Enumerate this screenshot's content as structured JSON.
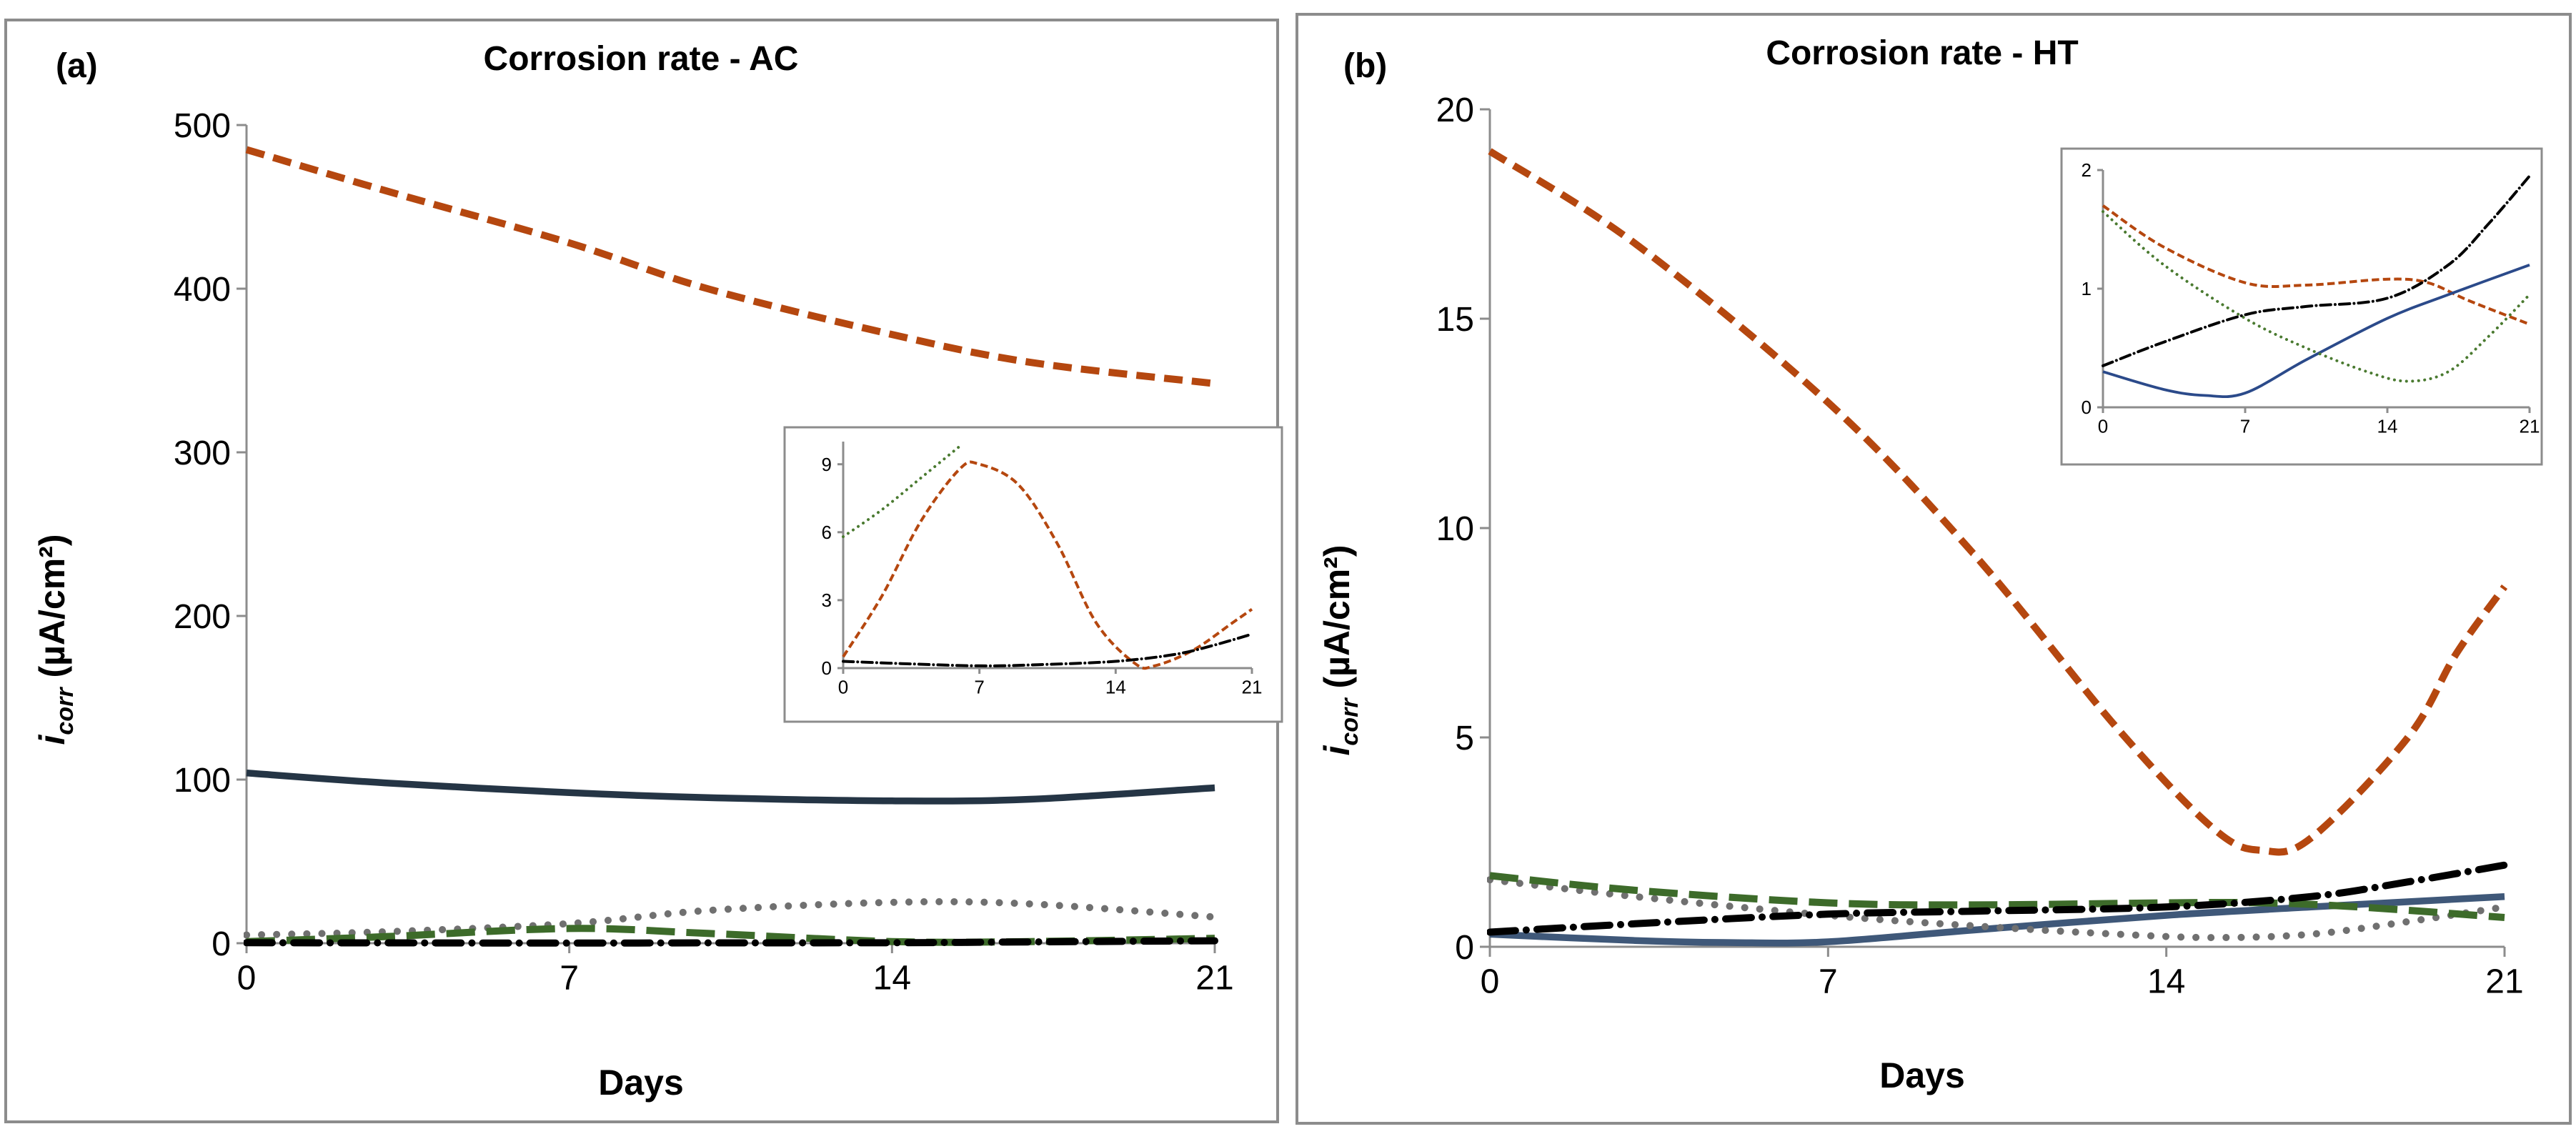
{
  "chart_data": [
    {
      "type": "line",
      "panel_label": "(a)",
      "title": "Corrosion rate - AC",
      "xlabel": "Days",
      "ylabel": {
        "main": "i",
        "sub": "corr",
        "units": " (µA/cm²)"
      },
      "xticks": [
        0,
        7,
        14,
        21
      ],
      "yticks": [
        0,
        100,
        200,
        300,
        400,
        500
      ],
      "xlim": [
        0,
        21
      ],
      "ylim": [
        0,
        500
      ],
      "grid": false,
      "series": [
        {
          "name": "orange-dashed",
          "color": "#b5470f",
          "style": "dashed",
          "x": [
            0,
            3,
            7,
            10,
            14,
            17,
            21
          ],
          "y": [
            485,
            460,
            428,
            400,
            372,
            355,
            342
          ]
        },
        {
          "name": "navy-solid",
          "color": "#253545",
          "style": "solid",
          "x": [
            0,
            3,
            7,
            10,
            14,
            17,
            21
          ],
          "y": [
            104,
            98,
            92,
            89,
            87,
            88,
            95
          ]
        },
        {
          "name": "gray-dotted",
          "color": "#707070",
          "style": "dotted",
          "x": [
            0,
            3,
            7,
            10,
            14,
            17,
            21
          ],
          "y": [
            5,
            7,
            12,
            20,
            25,
            24,
            16
          ]
        },
        {
          "name": "green-dashed",
          "color": "#3d6b2a",
          "style": "longdash",
          "x": [
            0,
            3,
            7,
            10,
            14,
            17,
            21
          ],
          "y": [
            1,
            4,
            9,
            6,
            1,
            1,
            3
          ]
        },
        {
          "name": "black-dashdot",
          "color": "#000000",
          "style": "dashdot",
          "x": [
            0,
            3,
            7,
            10,
            14,
            17,
            21
          ],
          "y": [
            0.3,
            0.2,
            0.1,
            0.2,
            0.3,
            0.8,
            1.5
          ]
        }
      ],
      "inset": {
        "xticks": [
          0,
          7,
          14,
          21
        ],
        "yticks": [
          0,
          3,
          6,
          9
        ],
        "xlim": [
          0,
          21
        ],
        "ylim": [
          0,
          10
        ],
        "series": [
          {
            "name": "orange-dashed",
            "color": "#b5470f",
            "style": "dashed",
            "x": [
              0,
              2,
              4,
              6,
              7,
              9,
              11,
              13,
              15,
              16,
              18,
              20,
              21
            ],
            "y": [
              0.5,
              3.2,
              6.5,
              8.8,
              9.0,
              8.1,
              5.5,
              2.0,
              0.2,
              0.1,
              0.8,
              2.0,
              2.6
            ]
          },
          {
            "name": "green-dotted",
            "color": "#4a7a30",
            "style": "dotted",
            "x": [
              0,
              2,
              4,
              6
            ],
            "y": [
              5.8,
              7.0,
              8.4,
              9.8
            ]
          },
          {
            "name": "black-dashdot",
            "color": "#000000",
            "style": "dashdot",
            "x": [
              0,
              3,
              7,
              10,
              14,
              17,
              19,
              21
            ],
            "y": [
              0.3,
              0.2,
              0.1,
              0.15,
              0.3,
              0.6,
              1.0,
              1.5
            ]
          }
        ]
      }
    },
    {
      "type": "line",
      "panel_label": "(b)",
      "title": "Corrosion rate - HT",
      "xlabel": "Days",
      "ylabel": {
        "main": "i",
        "sub": "corr",
        "units": " (µA/cm²)"
      },
      "xticks": [
        0,
        7,
        14,
        21
      ],
      "yticks": [
        0,
        5,
        10,
        15,
        20
      ],
      "xlim": [
        0,
        21
      ],
      "ylim": [
        0,
        20
      ],
      "grid": false,
      "series": [
        {
          "name": "orange-dashed",
          "color": "#b5470f",
          "style": "dashed",
          "x": [
            0,
            3,
            7,
            10,
            13,
            15,
            16,
            17,
            19,
            20,
            21
          ],
          "y": [
            19.0,
            16.8,
            13.0,
            9.4,
            5.2,
            2.8,
            2.3,
            2.6,
            5.0,
            7.0,
            8.6
          ]
        },
        {
          "name": "slate-solid",
          "color": "#3f5879",
          "style": "solid",
          "x": [
            0,
            3,
            5,
            7,
            10,
            14,
            17,
            21
          ],
          "y": [
            0.3,
            0.15,
            0.1,
            0.12,
            0.4,
            0.75,
            0.95,
            1.2
          ]
        },
        {
          "name": "gray-dotted",
          "color": "#707070",
          "style": "dotted",
          "x": [
            0,
            3,
            7,
            10,
            13,
            15,
            17,
            19,
            21
          ],
          "y": [
            1.6,
            1.2,
            0.75,
            0.5,
            0.3,
            0.22,
            0.3,
            0.6,
            0.95
          ]
        },
        {
          "name": "green-dashed",
          "color": "#3d6b2a",
          "style": "longdash",
          "x": [
            0,
            3,
            7,
            10,
            14,
            16,
            18,
            21
          ],
          "y": [
            1.7,
            1.35,
            1.05,
            1.0,
            1.05,
            1.05,
            0.95,
            0.7
          ]
        },
        {
          "name": "black-dashdot",
          "color": "#000000",
          "style": "dashdot",
          "x": [
            0,
            3,
            7,
            10,
            14,
            17,
            19,
            21
          ],
          "y": [
            0.35,
            0.55,
            0.78,
            0.85,
            0.95,
            1.2,
            1.55,
            1.95
          ]
        }
      ],
      "inset": {
        "xticks": [
          0,
          7,
          14,
          21
        ],
        "yticks": [
          0,
          1,
          2
        ],
        "xlim": [
          0,
          21
        ],
        "ylim": [
          0,
          2
        ],
        "series": [
          {
            "name": "orange-dashed",
            "color": "#b5470f",
            "style": "dashed",
            "x": [
              0,
              3,
              7,
              10,
              14,
              16,
              18,
              21
            ],
            "y": [
              1.7,
              1.35,
              1.05,
              1.03,
              1.08,
              1.05,
              0.9,
              0.7
            ]
          },
          {
            "name": "navy-solid",
            "color": "#2b4a8a",
            "style": "solid",
            "x": [
              0,
              3,
              5,
              7,
              10,
              14,
              17,
              21
            ],
            "y": [
              0.3,
              0.15,
              0.1,
              0.12,
              0.4,
              0.75,
              0.95,
              1.2
            ]
          },
          {
            "name": "green-dotted",
            "color": "#4a7a30",
            "style": "dotted",
            "x": [
              0,
              3,
              7,
              10,
              13,
              15,
              17,
              19,
              21
            ],
            "y": [
              1.65,
              1.2,
              0.75,
              0.5,
              0.3,
              0.22,
              0.3,
              0.6,
              0.95
            ]
          },
          {
            "name": "black-dashdot",
            "color": "#000000",
            "style": "dashdot",
            "x": [
              0,
              3,
              7,
              10,
              14,
              17,
              19,
              21
            ],
            "y": [
              0.35,
              0.55,
              0.78,
              0.85,
              0.92,
              1.2,
              1.55,
              1.95
            ]
          }
        ]
      }
    }
  ]
}
